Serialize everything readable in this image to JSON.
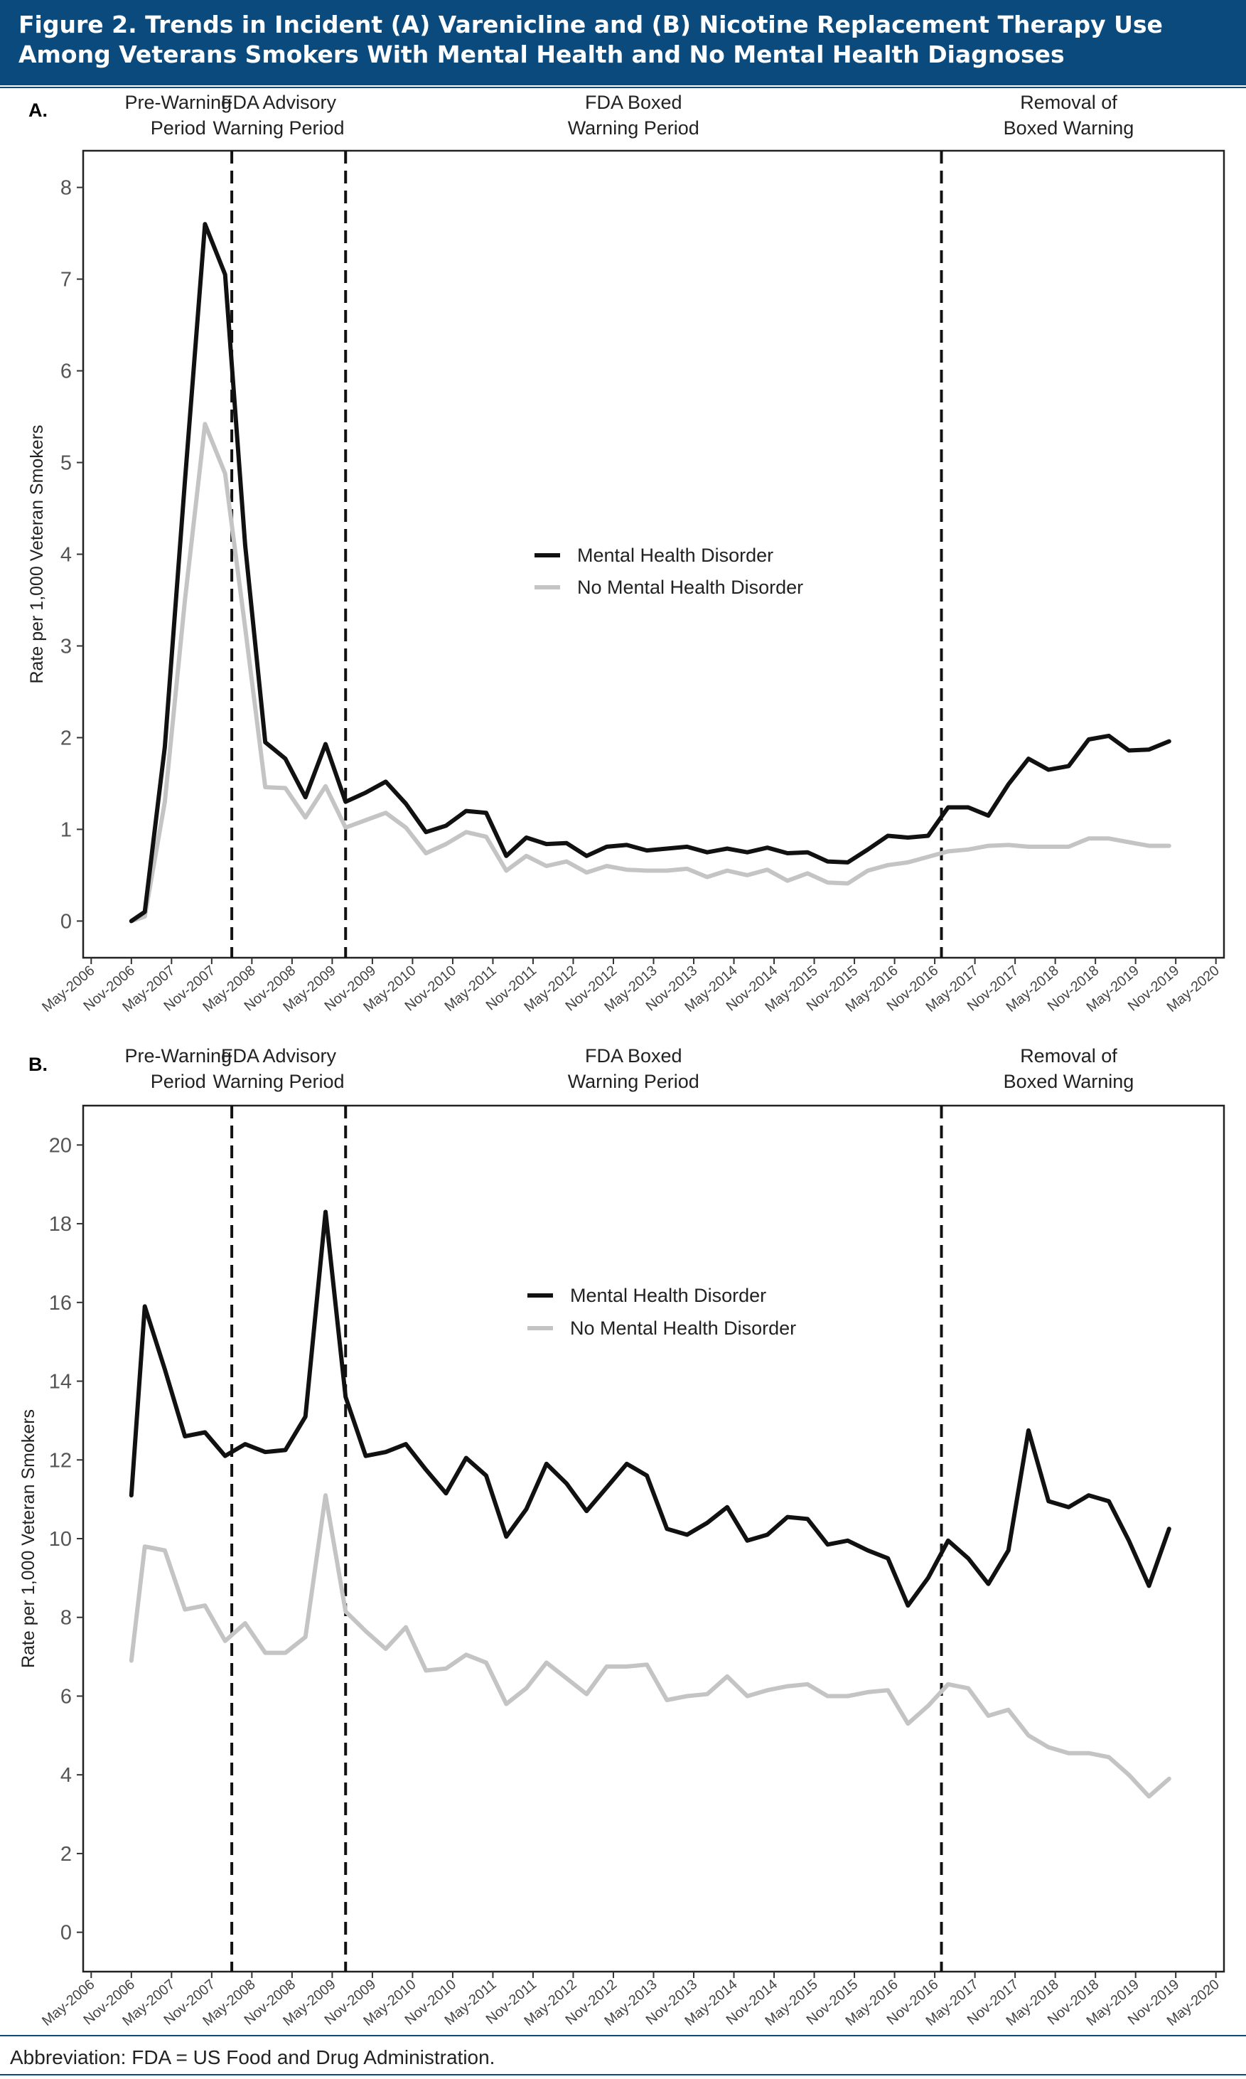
{
  "figure_title": "Figure 2. Trends in Incident (A) Varenicline and (B) Nicotine Replacement Therapy Use Among Veterans Smokers With Mental Health and No Mental Health Diagnoses",
  "footnote": "Abbreviation: FDA = US Food and Drug Administration.",
  "colors": {
    "header_bg": "#0b4a7d",
    "mental_health": "#111111",
    "no_mental_health": "#c4c4c4"
  },
  "chart_data": [
    {
      "type": "line",
      "panel_label": "A.",
      "title": "",
      "xlabel": "",
      "ylabel": "Rate per 1,000 Veteran Smokers",
      "ylim": [
        -0.4,
        8.4
      ],
      "yticks": [
        0,
        1,
        2,
        3,
        4,
        5,
        6,
        7,
        8
      ],
      "x_tick_labels": [
        "May-2006",
        "Nov-2006",
        "May-2007",
        "Nov-2007",
        "May-2008",
        "Nov-2008",
        "May-2009",
        "Nov-2009",
        "May-2010",
        "Nov-2010",
        "May-2011",
        "Nov-2011",
        "May-2012",
        "Nov-2012",
        "May-2013",
        "Nov-2013",
        "May-2014",
        "Nov-2014",
        "May-2015",
        "Nov-2015",
        "May-2016",
        "Nov-2016",
        "May-2017",
        "Nov-2017",
        "May-2018",
        "Nov-2018",
        "May-2019",
        "Nov-2019",
        "May-2020"
      ],
      "periods": [
        {
          "label_line1": "Pre-Warning",
          "label_line2": "Period",
          "center_x": "Jun-2007"
        },
        {
          "label_line1": "FDA Advisory",
          "label_line2": "Warning Period",
          "center_x": "Sep-2008"
        },
        {
          "label_line1": "FDA Boxed",
          "label_line2": "Warning Period",
          "center_x": "Feb-2013"
        },
        {
          "label_line1": "Removal of",
          "label_line2": "Boxed Warning",
          "center_x": "Jul-2018"
        }
      ],
      "vlines": [
        "Feb-2008",
        "Jul-2009",
        "Dec-2016"
      ],
      "legend": {
        "position": "center",
        "entries": [
          "Mental Health Disorder",
          "No Mental Health Disorder"
        ]
      },
      "grid": false,
      "series": [
        {
          "name": "Mental Health Disorder",
          "x": [
            "Nov-2006",
            "Jan-2007",
            "Apr-2007",
            "Jul-2007",
            "Oct-2007",
            "Jan-2008",
            "Apr-2008",
            "Jul-2008",
            "Oct-2008",
            "Jan-2009",
            "Apr-2009",
            "Jul-2009",
            "Oct-2009",
            "Jan-2010",
            "Apr-2010",
            "Jul-2010",
            "Oct-2010",
            "Jan-2011",
            "Apr-2011",
            "Jul-2011",
            "Oct-2011",
            "Jan-2012",
            "Apr-2012",
            "Jul-2012",
            "Oct-2012",
            "Jan-2013",
            "Apr-2013",
            "Jul-2013",
            "Oct-2013",
            "Jan-2014",
            "Apr-2014",
            "Jul-2014",
            "Oct-2014",
            "Jan-2015",
            "Apr-2015",
            "Jul-2015",
            "Oct-2015",
            "Jan-2016",
            "Apr-2016",
            "Jul-2016",
            "Oct-2016",
            "Jan-2017",
            "Apr-2017",
            "Jul-2017",
            "Oct-2017",
            "Jan-2018",
            "Apr-2018",
            "Jul-2018",
            "Oct-2018",
            "Jan-2019",
            "Apr-2019",
            "Jul-2019",
            "Oct-2019"
          ],
          "y": [
            0.0,
            0.1,
            1.9,
            4.8,
            7.6,
            7.05,
            4.1,
            1.95,
            1.77,
            1.35,
            1.93,
            1.3,
            1.4,
            1.52,
            1.28,
            0.97,
            1.04,
            1.2,
            1.18,
            0.71,
            0.91,
            0.84,
            0.85,
            0.71,
            0.81,
            0.83,
            0.77,
            0.79,
            0.81,
            0.75,
            0.79,
            0.75,
            0.8,
            0.74,
            0.75,
            0.65,
            0.64,
            0.78,
            0.93,
            0.91,
            0.93,
            1.24,
            1.24,
            1.15,
            1.49,
            1.77,
            1.65,
            1.69,
            1.98,
            2.02,
            1.86,
            1.87,
            1.96
          ]
        },
        {
          "name": "No Mental Health Disorder",
          "x": [
            "Nov-2006",
            "Jan-2007",
            "Apr-2007",
            "Jul-2007",
            "Oct-2007",
            "Jan-2008",
            "Apr-2008",
            "Jul-2008",
            "Oct-2008",
            "Jan-2009",
            "Apr-2009",
            "Jul-2009",
            "Oct-2009",
            "Jan-2010",
            "Apr-2010",
            "Jul-2010",
            "Oct-2010",
            "Jan-2011",
            "Apr-2011",
            "Jul-2011",
            "Oct-2011",
            "Jan-2012",
            "Apr-2012",
            "Jul-2012",
            "Oct-2012",
            "Jan-2013",
            "Apr-2013",
            "Jul-2013",
            "Oct-2013",
            "Jan-2014",
            "Apr-2014",
            "Jul-2014",
            "Oct-2014",
            "Jan-2015",
            "Apr-2015",
            "Jul-2015",
            "Oct-2015",
            "Jan-2016",
            "Apr-2016",
            "Jul-2016",
            "Oct-2016",
            "Jan-2017",
            "Apr-2017",
            "Jul-2017",
            "Oct-2017",
            "Jan-2018",
            "Apr-2018",
            "Jul-2018",
            "Oct-2018",
            "Jan-2019",
            "Apr-2019",
            "Jul-2019",
            "Oct-2019"
          ],
          "y": [
            0.0,
            0.05,
            1.3,
            3.5,
            5.42,
            4.88,
            3.2,
            1.46,
            1.45,
            1.13,
            1.47,
            1.02,
            1.1,
            1.18,
            1.02,
            0.74,
            0.84,
            0.97,
            0.92,
            0.55,
            0.71,
            0.6,
            0.65,
            0.53,
            0.6,
            0.56,
            0.55,
            0.55,
            0.57,
            0.48,
            0.55,
            0.5,
            0.56,
            0.44,
            0.52,
            0.42,
            0.41,
            0.55,
            0.61,
            0.64,
            0.7,
            0.76,
            0.78,
            0.82,
            0.83,
            0.81,
            0.81,
            0.81,
            0.9,
            0.9,
            0.86,
            0.82,
            0.82
          ]
        }
      ]
    },
    {
      "type": "line",
      "panel_label": "B.",
      "title": "",
      "xlabel": "",
      "ylabel": "Rate per 1,000 Veteran Smokers",
      "ylim": [
        -1,
        21
      ],
      "yticks": [
        0,
        2,
        4,
        6,
        8,
        10,
        12,
        14,
        16,
        18,
        20
      ],
      "x_tick_labels": [
        "May-2006",
        "Nov-2006",
        "May-2007",
        "Nov-2007",
        "May-2008",
        "Nov-2008",
        "May-2009",
        "Nov-2009",
        "May-2010",
        "Nov-2010",
        "May-2011",
        "Nov-2011",
        "May-2012",
        "Nov-2012",
        "May-2013",
        "Nov-2013",
        "May-2014",
        "Nov-2014",
        "May-2015",
        "Nov-2015",
        "May-2016",
        "Nov-2016",
        "May-2017",
        "Nov-2017",
        "May-2018",
        "Nov-2018",
        "May-2019",
        "Nov-2019",
        "May-2020"
      ],
      "periods": [
        {
          "label_line1": "Pre-Warning",
          "label_line2": "Period",
          "center_x": "Jun-2007"
        },
        {
          "label_line1": "FDA Advisory",
          "label_line2": "Warning Period",
          "center_x": "Sep-2008"
        },
        {
          "label_line1": "FDA Boxed",
          "label_line2": "Warning Period",
          "center_x": "Feb-2013"
        },
        {
          "label_line1": "Removal of",
          "label_line2": "Boxed Warning",
          "center_x": "Jul-2018"
        }
      ],
      "vlines": [
        "Feb-2008",
        "Jul-2009",
        "Dec-2016"
      ],
      "legend": {
        "position": "top-center",
        "entries": [
          "Mental Health Disorder",
          "No Mental Health Disorder"
        ]
      },
      "grid": false,
      "series": [
        {
          "name": "Mental Health Disorder",
          "x": [
            "Nov-2006",
            "Jan-2007",
            "Apr-2007",
            "Jul-2007",
            "Oct-2007",
            "Jan-2008",
            "Apr-2008",
            "Jul-2008",
            "Oct-2008",
            "Jan-2009",
            "Apr-2009",
            "Jul-2009",
            "Oct-2009",
            "Jan-2010",
            "Apr-2010",
            "Jul-2010",
            "Oct-2010",
            "Jan-2011",
            "Apr-2011",
            "Jul-2011",
            "Oct-2011",
            "Jan-2012",
            "Apr-2012",
            "Jul-2012",
            "Oct-2012",
            "Jan-2013",
            "Apr-2013",
            "Jul-2013",
            "Oct-2013",
            "Jan-2014",
            "Apr-2014",
            "Jul-2014",
            "Oct-2014",
            "Jan-2015",
            "Apr-2015",
            "Jul-2015",
            "Oct-2015",
            "Jan-2016",
            "Apr-2016",
            "Jul-2016",
            "Oct-2016",
            "Jan-2017",
            "Apr-2017",
            "Jul-2017",
            "Oct-2017",
            "Jan-2018",
            "Apr-2018",
            "Jul-2018",
            "Oct-2018",
            "Jan-2019",
            "Apr-2019",
            "Jul-2019",
            "Oct-2019"
          ],
          "y": [
            11.1,
            15.9,
            14.3,
            12.6,
            12.7,
            12.1,
            12.4,
            12.2,
            12.25,
            13.1,
            18.3,
            13.6,
            12.1,
            12.2,
            12.4,
            11.75,
            11.15,
            12.05,
            11.6,
            10.05,
            10.75,
            11.9,
            11.4,
            10.7,
            11.3,
            11.9,
            11.6,
            10.25,
            10.1,
            10.4,
            10.8,
            9.95,
            10.1,
            10.55,
            10.5,
            9.85,
            9.95,
            9.7,
            9.5,
            8.3,
            9.0,
            9.95,
            9.5,
            8.85,
            9.7,
            12.75,
            10.95,
            10.8,
            11.1,
            10.95,
            9.95,
            8.8,
            10.25
          ]
        },
        {
          "name": "No Mental Health Disorder",
          "x": [
            "Nov-2006",
            "Jan-2007",
            "Apr-2007",
            "Jul-2007",
            "Oct-2007",
            "Jan-2008",
            "Apr-2008",
            "Jul-2008",
            "Oct-2008",
            "Jan-2009",
            "Apr-2009",
            "Jul-2009",
            "Oct-2009",
            "Jan-2010",
            "Apr-2010",
            "Jul-2010",
            "Oct-2010",
            "Jan-2011",
            "Apr-2011",
            "Jul-2011",
            "Oct-2011",
            "Jan-2012",
            "Apr-2012",
            "Jul-2012",
            "Oct-2012",
            "Jan-2013",
            "Apr-2013",
            "Jul-2013",
            "Oct-2013",
            "Jan-2014",
            "Apr-2014",
            "Jul-2014",
            "Oct-2014",
            "Jan-2015",
            "Apr-2015",
            "Jul-2015",
            "Oct-2015",
            "Jan-2016",
            "Apr-2016",
            "Jul-2016",
            "Oct-2016",
            "Jan-2017",
            "Apr-2017",
            "Jul-2017",
            "Oct-2017",
            "Jan-2018",
            "Apr-2018",
            "Jul-2018",
            "Oct-2018",
            "Jan-2019",
            "Apr-2019",
            "Jul-2019",
            "Oct-2019"
          ],
          "y": [
            6.9,
            9.8,
            9.7,
            8.2,
            8.3,
            7.4,
            7.85,
            7.1,
            7.1,
            7.5,
            11.1,
            8.15,
            7.65,
            7.2,
            7.75,
            6.65,
            6.7,
            7.05,
            6.85,
            5.8,
            6.2,
            6.85,
            6.45,
            6.05,
            6.75,
            6.75,
            6.8,
            5.9,
            6.0,
            6.05,
            6.5,
            6.0,
            6.15,
            6.25,
            6.3,
            6.0,
            6.0,
            6.1,
            6.15,
            5.3,
            5.75,
            6.3,
            6.2,
            5.5,
            5.65,
            5.0,
            4.7,
            4.55,
            4.55,
            4.45,
            4.0,
            3.45,
            3.9
          ]
        }
      ]
    }
  ]
}
